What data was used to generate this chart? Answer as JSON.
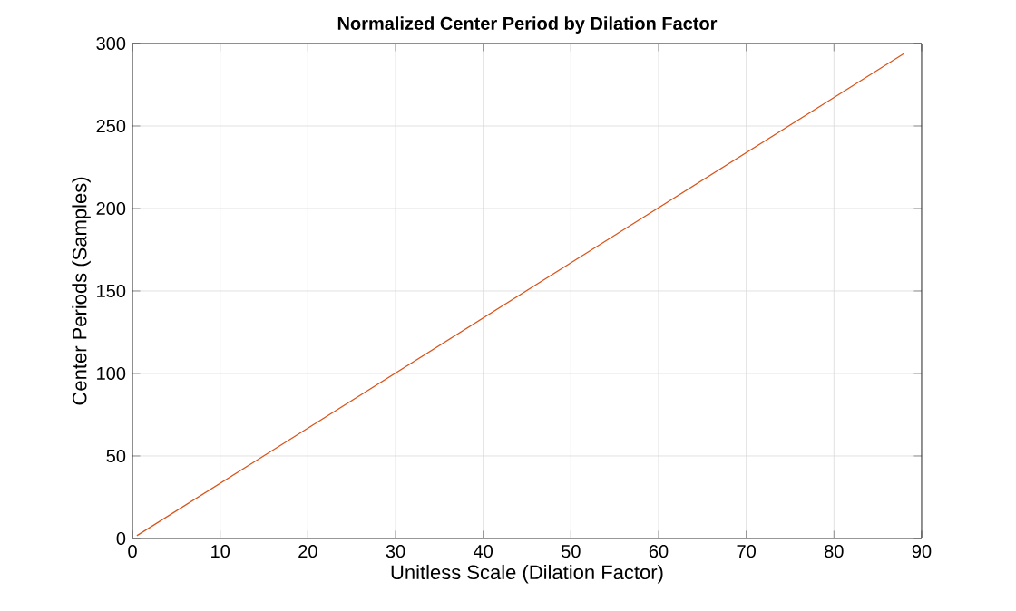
{
  "chart_data": {
    "type": "line",
    "title": "Normalized Center Period by Dilation Factor",
    "xlabel": "Unitless Scale (Dilation Factor)",
    "ylabel": "Center Periods (Samples)",
    "x": [
      0.5,
      88
    ],
    "series": [
      {
        "color": "#d95319",
        "values": [
          1.7,
          294
        ]
      }
    ],
    "xlim": [
      0,
      90
    ],
    "ylim": [
      0,
      300
    ],
    "xticks": [
      0,
      10,
      20,
      30,
      40,
      50,
      60,
      70,
      80,
      90
    ],
    "yticks": [
      0,
      50,
      100,
      150,
      200,
      250,
      300
    ],
    "grid": true
  }
}
